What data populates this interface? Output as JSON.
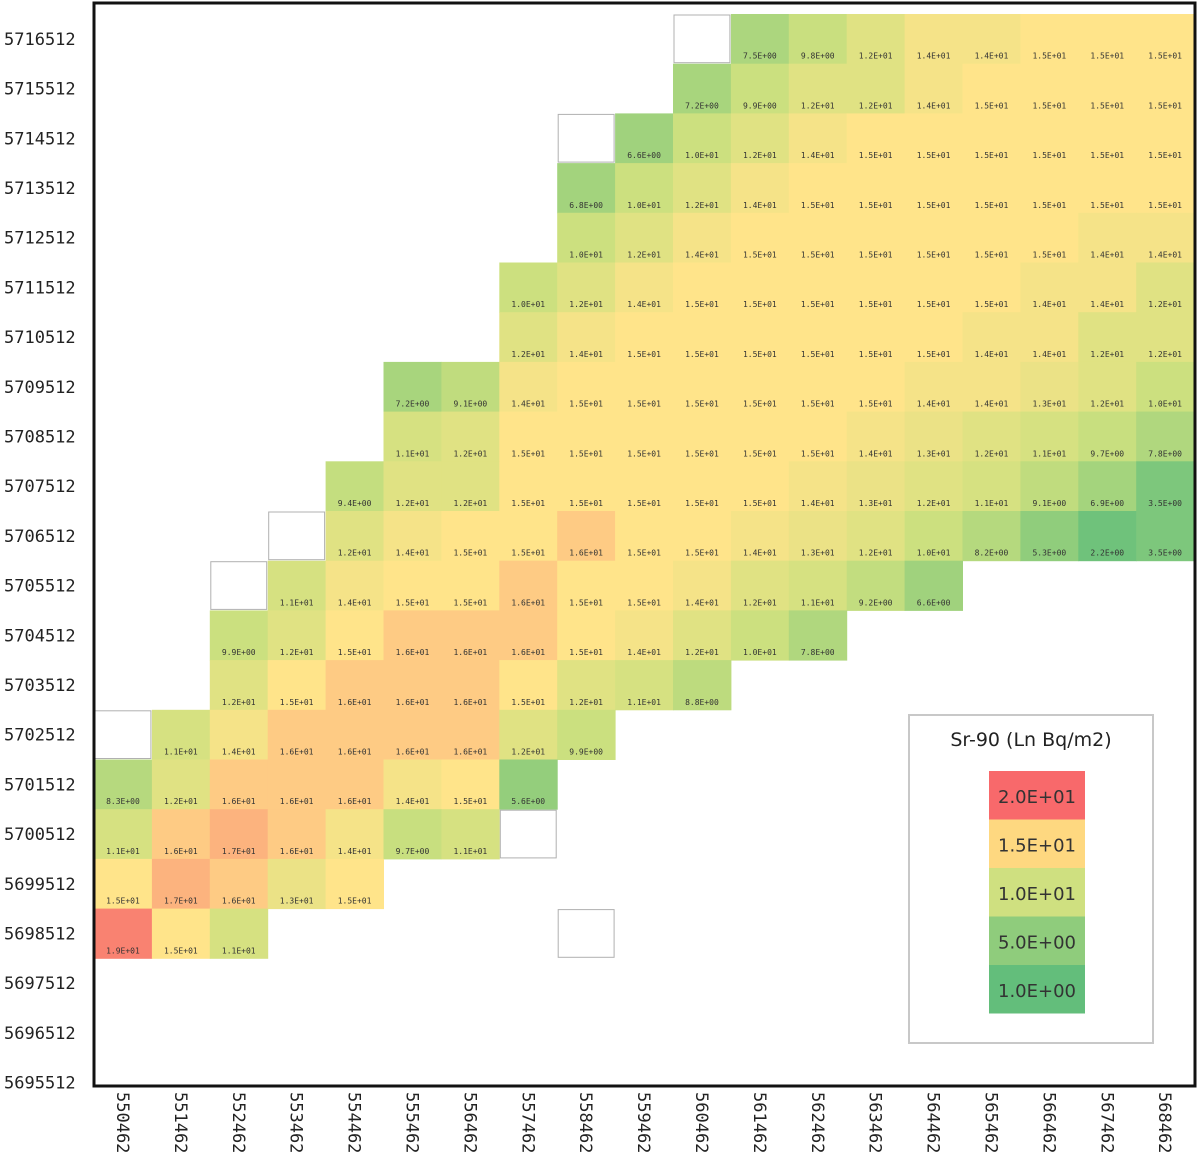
{
  "chart_data": {
    "type": "heatmap",
    "title": "",
    "xlabel": "",
    "ylabel": "",
    "x_categories": [
      "550462",
      "551462",
      "552462",
      "553462",
      "554462",
      "555462",
      "556462",
      "557462",
      "558462",
      "559462",
      "560462",
      "561462",
      "562462",
      "563462",
      "564462",
      "565462",
      "566462",
      "567462",
      "568462"
    ],
    "y_categories": [
      "5716512",
      "5715512",
      "5714512",
      "5713512",
      "5712512",
      "5711512",
      "5710512",
      "5709512",
      "5708512",
      "5707512",
      "5706512",
      "5705512",
      "5704512",
      "5703512",
      "5702512",
      "5701512",
      "5700512",
      "5699512",
      "5698512",
      "5697512",
      "5696512",
      "5695512"
    ],
    "grid": [
      [
        null,
        null,
        null,
        null,
        null,
        null,
        null,
        null,
        null,
        null,
        "empty",
        7.5,
        9.8,
        12,
        14,
        14,
        15,
        15,
        15
      ],
      [
        null,
        null,
        null,
        null,
        null,
        null,
        null,
        null,
        null,
        null,
        7.2,
        9.9,
        12,
        12,
        14,
        15,
        15,
        15,
        15
      ],
      [
        null,
        null,
        null,
        null,
        null,
        null,
        null,
        null,
        "empty",
        6.6,
        10,
        12,
        14,
        15,
        15,
        15,
        15,
        15,
        15
      ],
      [
        null,
        null,
        null,
        null,
        null,
        null,
        null,
        null,
        6.8,
        10,
        12,
        14,
        15,
        15,
        15,
        15,
        15,
        15,
        15
      ],
      [
        null,
        null,
        null,
        null,
        null,
        null,
        null,
        null,
        10,
        12,
        14,
        15,
        15,
        15,
        15,
        15,
        15,
        14,
        14
      ],
      [
        null,
        null,
        null,
        null,
        null,
        null,
        null,
        10,
        12,
        14,
        15,
        15,
        15,
        15,
        15,
        15,
        14,
        14,
        12
      ],
      [
        null,
        null,
        null,
        null,
        null,
        null,
        null,
        12,
        14,
        15,
        15,
        15,
        15,
        15,
        15,
        14,
        14,
        12,
        12
      ],
      [
        null,
        null,
        null,
        null,
        null,
        7.2,
        9.1,
        14,
        15,
        15,
        15,
        15,
        15,
        15,
        14,
        14,
        13,
        12,
        10
      ],
      [
        null,
        null,
        null,
        null,
        null,
        11,
        12,
        15,
        15,
        15,
        15,
        15,
        15,
        14,
        13,
        12,
        11,
        9.7,
        7.8
      ],
      [
        null,
        null,
        null,
        null,
        9.4,
        12,
        12,
        15,
        15,
        15,
        15,
        15,
        14,
        13,
        12,
        11,
        9.1,
        6.9,
        3.5
      ],
      [
        null,
        null,
        null,
        "empty",
        12,
        14,
        15,
        15,
        16,
        15,
        15,
        14,
        13,
        12,
        10,
        8.2,
        5.3,
        2.2,
        3.5
      ],
      [
        null,
        null,
        "empty",
        11,
        14,
        15,
        15,
        16,
        15,
        15,
        14,
        12,
        11,
        9.2,
        6.6,
        null,
        null,
        null,
        null
      ],
      [
        null,
        null,
        9.9,
        12,
        15,
        16,
        16,
        16,
        15,
        14,
        12,
        10,
        7.8,
        null,
        null,
        null,
        null,
        null,
        null
      ],
      [
        null,
        null,
        12,
        15,
        16,
        16,
        16,
        15,
        12,
        11,
        8.8,
        null,
        null,
        null,
        null,
        null,
        null,
        null,
        null
      ],
      [
        "empty",
        11,
        14,
        16,
        16,
        16,
        16,
        12,
        9.9,
        null,
        null,
        null,
        null,
        null,
        null,
        null,
        null,
        null,
        null
      ],
      [
        8.3,
        12,
        16,
        16,
        16,
        14,
        15,
        5.6,
        null,
        null,
        null,
        null,
        null,
        null,
        null,
        null,
        null,
        null,
        null
      ],
      [
        11,
        16,
        17,
        16,
        14,
        9.7,
        11,
        "empty",
        null,
        null,
        null,
        null,
        null,
        null,
        null,
        null,
        null,
        null,
        null
      ],
      [
        15,
        17,
        16,
        13,
        15,
        null,
        null,
        null,
        null,
        null,
        null,
        null,
        null,
        null,
        null,
        null,
        null,
        null,
        null
      ],
      [
        19,
        15,
        11,
        null,
        null,
        null,
        null,
        null,
        "empty",
        null,
        null,
        null,
        null,
        null,
        null,
        null,
        null,
        null,
        null
      ],
      [
        null,
        null,
        null,
        null,
        null,
        null,
        null,
        null,
        null,
        null,
        null,
        null,
        null,
        null,
        null,
        null,
        null,
        null,
        null
      ],
      [
        null,
        null,
        null,
        null,
        null,
        null,
        null,
        null,
        null,
        null,
        null,
        null,
        null,
        null,
        null,
        null,
        null,
        null,
        null
      ],
      [
        null,
        null,
        null,
        null,
        null,
        null,
        null,
        null,
        null,
        null,
        null,
        null,
        null,
        null,
        null,
        null,
        null,
        null,
        null
      ]
    ],
    "colors": {
      "stops": [
        {
          "value": 1,
          "color": "#63be7b"
        },
        {
          "value": 5,
          "color": "#8ccc7c"
        },
        {
          "value": 10,
          "color": "#cce07f"
        },
        {
          "value": 15,
          "color": "#ffe48a"
        },
        {
          "value": 20,
          "color": "#f8696b"
        }
      ]
    },
    "legend": {
      "title": "Sr-90 (Ln  Bq/m2)",
      "position": "bottom-right",
      "entries": [
        {
          "label": "2.0E+01",
          "color": "#f8696b"
        },
        {
          "label": "1.5E+01",
          "color": "#fed880"
        },
        {
          "label": "1.0E+01",
          "color": "#cfe080"
        },
        {
          "label": "5.0E+00",
          "color": "#8fcc7c"
        },
        {
          "label": "1.0E+00",
          "color": "#63be7b"
        }
      ]
    }
  }
}
